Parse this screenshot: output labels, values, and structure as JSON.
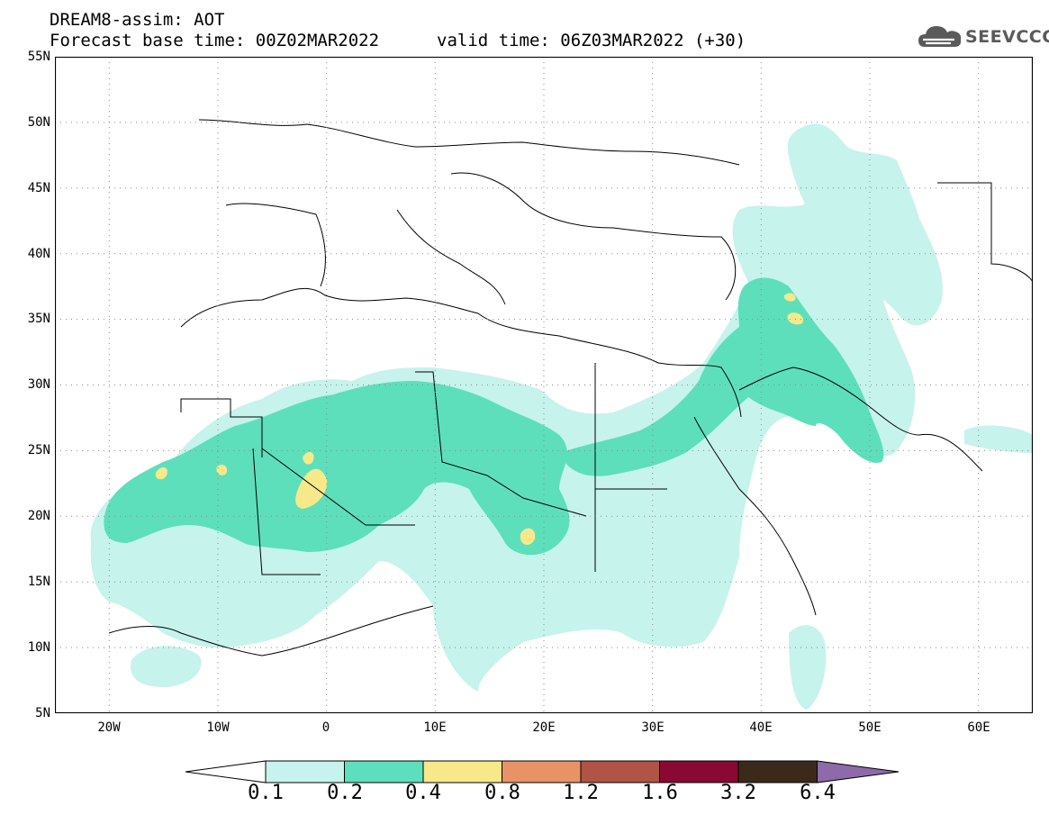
{
  "header": {
    "title": "DREAM8-assim: AOT",
    "base_time": "Forecast base time: 00Z02MAR2022",
    "valid_time": "valid time: 06Z03MAR2022 (+30)"
  },
  "logo": {
    "text": "SEEVCCC",
    "icon": "cloud-icon"
  },
  "map": {
    "variable": "AOT",
    "lat_range": [
      5,
      55
    ],
    "lon_range": [
      -25,
      65
    ],
    "lat_labels": [
      "55N",
      "50N",
      "45N",
      "40N",
      "35N",
      "30N",
      "25N",
      "20N",
      "15N",
      "10N",
      "5N"
    ],
    "lon_labels": [
      "20W",
      "10W",
      "0",
      "10E",
      "20E",
      "30E",
      "40E",
      "50E",
      "60E"
    ],
    "grid": "dotted",
    "colors": {
      "border": "#000000",
      "ocean": "#ffffff"
    }
  },
  "colorbar": {
    "labels": [
      "0.1",
      "0.2",
      "0.4",
      "0.8",
      "1.2",
      "1.6",
      "3.2",
      "6.4"
    ],
    "colors": [
      "#c6f3ec",
      "#5ddfbb",
      "#f7e98a",
      "#e89366",
      "#b05445",
      "#8a0834",
      "#3b2a1a",
      "#8d6aa9"
    ],
    "lower_extension_color": "#ffffff"
  }
}
